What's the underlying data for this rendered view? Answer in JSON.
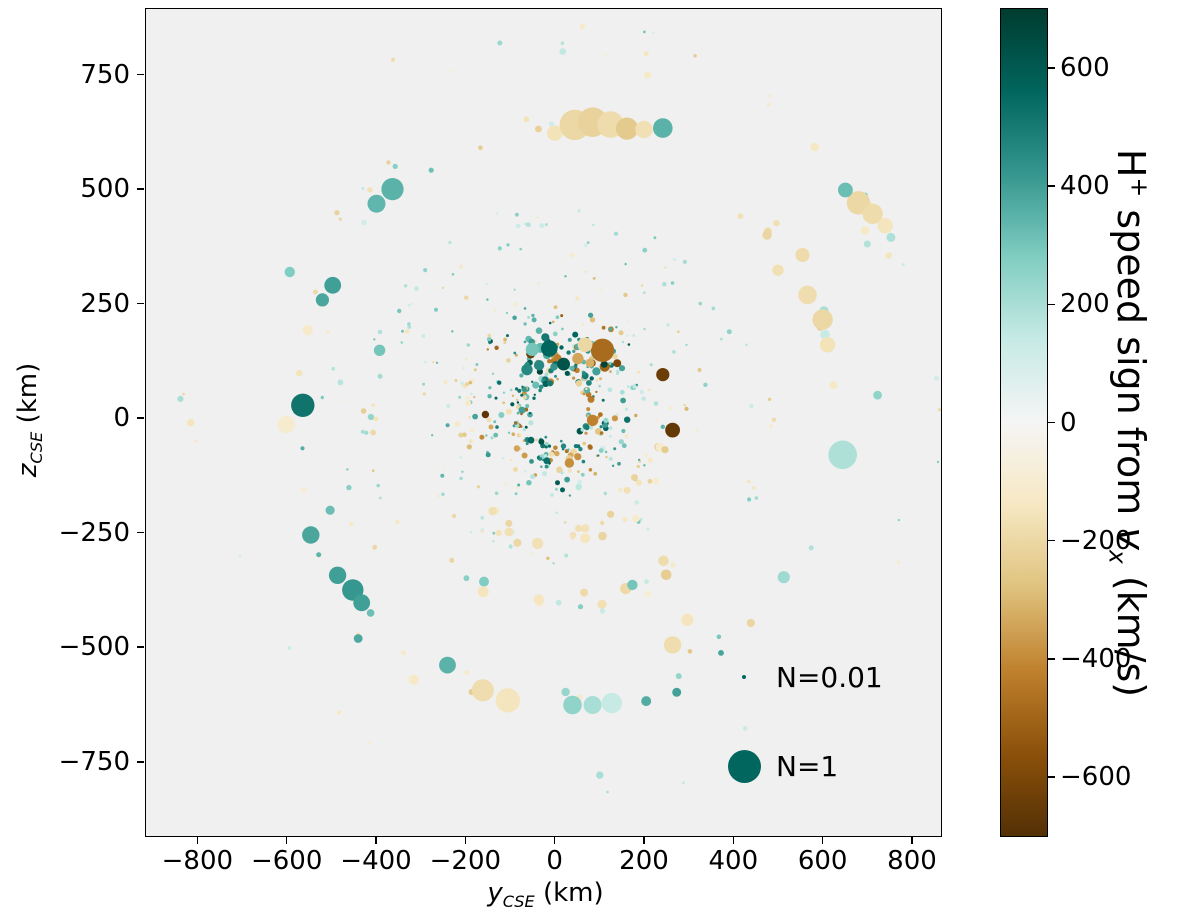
{
  "chart_data": {
    "type": "scatter",
    "title": "",
    "background_color": "#f0f0f0",
    "size_legend_color": "#01665e",
    "size_legend": [
      {
        "label": "N=0.01",
        "n": 0.01
      },
      {
        "label": "N=1",
        "n": 1
      }
    ],
    "marker_scale": {
      "radius_at_n1_px": 16.5,
      "min_radius_px": 1.2
    },
    "xaxis": {
      "range": [
        -915,
        865
      ],
      "label": {
        "var": "y",
        "sub": "CSE",
        "rest": " (km)"
      },
      "ticks": [
        {
          "value": -800,
          "label": "−800"
        },
        {
          "value": -600,
          "label": "−600"
        },
        {
          "value": -400,
          "label": "−400"
        },
        {
          "value": -200,
          "label": "−200"
        },
        {
          "value": 0,
          "label": "0"
        },
        {
          "value": 200,
          "label": "200"
        },
        {
          "value": 400,
          "label": "400"
        },
        {
          "value": 600,
          "label": "600"
        },
        {
          "value": 800,
          "label": "800"
        }
      ]
    },
    "yaxis": {
      "range": [
        -912,
        893
      ],
      "label": {
        "var": "z",
        "sub": "CSE",
        "rest": " (km)"
      },
      "ticks": [
        {
          "value": -750,
          "label": "−750"
        },
        {
          "value": -500,
          "label": "−500"
        },
        {
          "value": -250,
          "label": "−250"
        },
        {
          "value": 0,
          "label": "0"
        },
        {
          "value": 250,
          "label": "250"
        },
        {
          "value": 500,
          "label": "500"
        },
        {
          "value": 750,
          "label": "750"
        }
      ]
    },
    "colorbar": {
      "range": [
        -700,
        700
      ],
      "label": {
        "h": "H",
        "sup": "+",
        "mid": " speed sign from ",
        "v": "v",
        "sub": "x",
        "rest": " (km/s)"
      },
      "colormap_name": "BrBG",
      "colormap": [
        {
          "t": 0.0,
          "color": "#543005"
        },
        {
          "t": 0.1,
          "color": "#8c510a"
        },
        {
          "t": 0.2,
          "color": "#bf812d"
        },
        {
          "t": 0.3,
          "color": "#dfc27d"
        },
        {
          "t": 0.4,
          "color": "#f6e8c3"
        },
        {
          "t": 0.5,
          "color": "#f5f5f5"
        },
        {
          "t": 0.6,
          "color": "#c7eae5"
        },
        {
          "t": 0.7,
          "color": "#80cdc1"
        },
        {
          "t": 0.8,
          "color": "#35978f"
        },
        {
          "t": 0.9,
          "color": "#01665e"
        },
        {
          "t": 1.0,
          "color": "#003c30"
        }
      ],
      "ticks": [
        {
          "value": 600,
          "label": "600"
        },
        {
          "value": 400,
          "label": "400"
        },
        {
          "value": 200,
          "label": "200"
        },
        {
          "value": 0,
          "label": "0"
        },
        {
          "value": -200,
          "label": "−200"
        },
        {
          "value": -400,
          "label": "−400"
        },
        {
          "value": -600,
          "label": "−600"
        }
      ]
    },
    "scatter_spec": {
      "seed": 7,
      "center": [
        10,
        15
      ],
      "arcs": [
        {
          "rad": [
            62,
            115
          ],
          "ang": [
            0,
            360
          ],
          "count": 150,
          "size": [
            0.004,
            0.05
          ],
          "vel": [
            [
              150,
              650
            ],
            [
              200,
              600
            ],
            [
              -150,
              -500
            ]
          ]
        },
        {
          "rad": [
            115,
            190
          ],
          "ang": [
            0,
            360
          ],
          "count": 130,
          "size": [
            0.004,
            0.04
          ],
          "vel": [
            [
              100,
              600
            ],
            [
              100,
              450
            ],
            [
              -100,
              -400
            ]
          ]
        },
        {
          "rad": [
            95,
            165
          ],
          "ang": [
            40,
            125
          ],
          "count": 45,
          "size": [
            0.01,
            0.1
          ],
          "vel": [
            [
              300,
              680
            ],
            [
              250,
              600
            ],
            [
              -300,
              -650
            ]
          ]
        },
        {
          "rad": [
            190,
            265
          ],
          "ang": [
            0,
            360
          ],
          "count": 55,
          "size": [
            0.003,
            0.02
          ],
          "vel": [
            [
              100,
              400
            ],
            [
              -100,
              -300
            ]
          ]
        },
        {
          "rad": [
            190,
            228
          ],
          "ang": [
            35,
            148
          ],
          "count": 26,
          "size": [
            0.005,
            0.03
          ],
          "vel": [
            [
              200,
              620
            ],
            [
              -200,
              -600
            ]
          ]
        },
        {
          "rad": [
            196,
            232
          ],
          "ang": [
            158,
            202
          ],
          "count": 11,
          "size": [
            0.008,
            0.05
          ],
          "vel": [
            [
              -90,
              -300
            ]
          ]
        },
        {
          "rad": [
            205,
            265
          ],
          "ang": [
            288,
            342
          ],
          "count": 13,
          "size": [
            0.01,
            0.08
          ],
          "vel": [
            [
              -80,
              -250
            ]
          ]
        },
        {
          "rad": [
            280,
            335
          ],
          "ang": [
            0,
            360
          ],
          "count": 50,
          "size": [
            0.003,
            0.02
          ],
          "vel": [
            [
              80,
              350
            ],
            [
              -80,
              -300
            ]
          ]
        },
        {
          "rad": [
            258,
            302
          ],
          "ang": [
            233,
            307
          ],
          "count": 15,
          "size": [
            0.02,
            0.12
          ],
          "vel": [
            [
              -80,
              -250
            ]
          ]
        },
        {
          "rad": [
            340,
            455
          ],
          "ang": [
            20,
            160
          ],
          "count": 48,
          "size": [
            0.004,
            0.028
          ],
          "vel": [
            [
              100,
              350
            ],
            [
              120,
              300
            ],
            [
              -100,
              -220
            ]
          ]
        },
        {
          "rad": [
            405,
            450
          ],
          "ang": [
            158,
            216
          ],
          "count": 12,
          "size": [
            0.006,
            0.05
          ],
          "vel": [
            [
              -80,
              -280
            ],
            [
              120,
              260
            ]
          ]
        },
        {
          "rad": [
            398,
            448
          ],
          "ang": [
            228,
            312
          ],
          "count": 17,
          "size": [
            0.02,
            0.13
          ],
          "vel": [
            [
              -80,
              -300
            ],
            [
              100,
              300
            ]
          ]
        },
        {
          "rad": [
            420,
            500
          ],
          "ang": [
            -25,
            20
          ],
          "count": 10,
          "size": [
            0.004,
            0.05
          ],
          "vel": [
            [
              100,
              300
            ],
            [
              -100,
              -250
            ]
          ]
        },
        {
          "rad": [
            470,
            545
          ],
          "ang": [
            168,
            216
          ],
          "count": 8,
          "size": [
            0.005,
            0.04
          ],
          "vel": [
            [
              -90,
              -220
            ],
            [
              150,
              350
            ]
          ]
        },
        {
          "rad": [
            598,
            668
          ],
          "ang": [
            85,
            142
          ],
          "count": 16,
          "size": [
            0.006,
            0.05
          ],
          "vel": [
            [
              100,
              320
            ],
            [
              -100,
              -260
            ]
          ]
        },
        {
          "rad": [
            588,
            642
          ],
          "ang": [
            5,
            48
          ],
          "count": 9,
          "size": [
            0.03,
            0.18
          ],
          "vel": [
            [
              -100,
              -260
            ],
            [
              120,
              300
            ]
          ]
        },
        {
          "rad": [
            598,
            672
          ],
          "ang": [
            215,
            335
          ],
          "count": 18,
          "size": [
            0.015,
            0.14
          ],
          "vel": [
            [
              140,
              400
            ],
            [
              -100,
              -260
            ]
          ]
        },
        {
          "rad": [
            540,
            625
          ],
          "ang": [
            150,
            215
          ],
          "count": 7,
          "size": [
            0.01,
            0.09
          ],
          "vel": [
            [
              -90,
              -210
            ],
            [
              200,
              430
            ]
          ]
        },
        {
          "rad": [
            790,
            848
          ],
          "ang": [
            23,
            46
          ],
          "count": 6,
          "size": [
            0.015,
            0.1
          ],
          "vel": [
            [
              -130,
              -260
            ],
            [
              150,
              300
            ]
          ]
        },
        {
          "rad": [
            775,
            870
          ],
          "ang": [
            0,
            360
          ],
          "count": 26,
          "size": [
            0.003,
            0.025
          ],
          "vel": [
            [
              80,
              300
            ],
            [
              -80,
              -260
            ]
          ]
        }
      ]
    },
    "highlight_points": [
      [
        107,
        148,
        -480,
        0.5
      ],
      [
        52,
        130,
        -340,
        0.12
      ],
      [
        242,
        95,
        -640,
        0.16
      ],
      [
        264,
        -26,
        -660,
        0.2
      ],
      [
        85,
        -5,
        -420,
        0.12
      ],
      [
        -155,
        8,
        -680,
        0.05
      ],
      [
        33,
        -98,
        -390,
        0.08
      ],
      [
        -12,
        152,
        560,
        0.25
      ],
      [
        20,
        118,
        620,
        0.15
      ],
      [
        -62,
        106,
        460,
        0.12
      ],
      [
        -50,
        150,
        300,
        0.16
      ],
      [
        68,
        160,
        -200,
        0.2
      ],
      [
        140,
        120,
        -600,
        0.06
      ],
      [
        -564,
        28,
        520,
        0.5
      ],
      [
        -601,
        -14,
        -110,
        0.28
      ],
      [
        645,
        -80,
        190,
        0.75
      ],
      [
        0,
        622,
        -160,
        0.22
      ],
      [
        45,
        640,
        -200,
        0.85
      ],
      [
        85,
        646,
        -220,
        0.8
      ],
      [
        125,
        641,
        -185,
        0.65
      ],
      [
        162,
        632,
        -250,
        0.45
      ],
      [
        200,
        630,
        -170,
        0.28
      ],
      [
        242,
        633,
        350,
        0.35
      ],
      [
        680,
        470,
        -200,
        0.5
      ],
      [
        712,
        446,
        -185,
        0.38
      ],
      [
        740,
        420,
        -150,
        0.22
      ],
      [
        651,
        498,
        320,
        0.2
      ],
      [
        -363,
        500,
        350,
        0.45
      ],
      [
        -399,
        468,
        340,
        0.3
      ],
      [
        -497,
        290,
        400,
        0.26
      ],
      [
        -520,
        258,
        380,
        0.16
      ],
      [
        -546,
        -255,
        380,
        0.28
      ],
      [
        -486,
        -343,
        400,
        0.28
      ],
      [
        -452,
        -375,
        420,
        0.42
      ],
      [
        -432,
        -403,
        400,
        0.26
      ],
      [
        -240,
        -539,
        350,
        0.26
      ],
      [
        -161,
        -594,
        -180,
        0.45
      ],
      [
        -105,
        -616,
        -150,
        0.55
      ],
      [
        40,
        -626,
        250,
        0.32
      ],
      [
        85,
        -626,
        200,
        0.3
      ],
      [
        128,
        -622,
        140,
        0.38
      ],
      [
        264,
        -495,
        -180,
        0.28
      ],
      [
        297,
        -440,
        -150,
        0.14
      ],
      [
        174,
        -364,
        300,
        0.1
      ],
      [
        566,
        269,
        -180,
        0.32
      ],
      [
        600,
        215,
        -200,
        0.38
      ],
      [
        611,
        160,
        -160,
        0.22
      ],
      [
        555,
        356,
        -190,
        0.18
      ],
      [
        500,
        323,
        -170,
        0.12
      ],
      [
        723,
        50,
        250,
        0.07
      ],
      [
        -815,
        -10,
        -150,
        0.05
      ],
      [
        -838,
        42,
        200,
        0.035
      ],
      [
        101,
        -779,
        200,
        0.05
      ],
      [
        62,
        855,
        -120,
        0.03
      ],
      [
        700,
        380,
        180,
        0.045
      ],
      [
        748,
        355,
        -150,
        0.04
      ],
      [
        208,
        749,
        -130,
        0.05
      ],
      [
        18,
        800,
        150,
        0.04
      ],
      [
        -392,
        148,
        300,
        0.12
      ],
      [
        -553,
        192,
        -120,
        0.1
      ],
      [
        -593,
        319,
        280,
        0.1
      ]
    ]
  }
}
